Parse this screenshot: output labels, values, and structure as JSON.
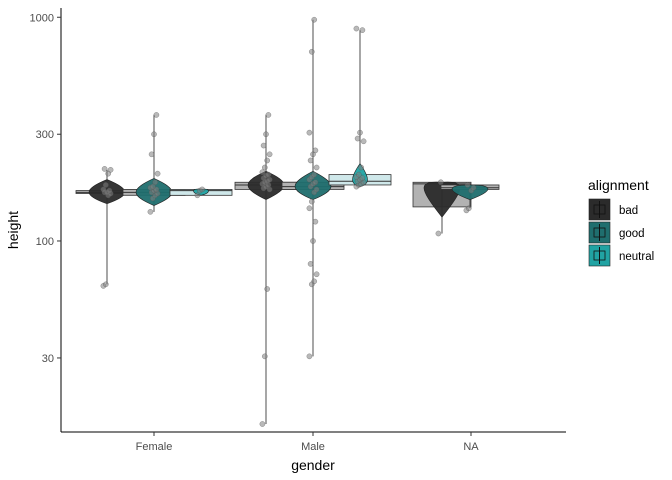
{
  "chart_data": {
    "type": "box-violin-jitter",
    "title": "",
    "xlabel": "gender",
    "ylabel": "height",
    "y_scale": "log10",
    "ylim": [
      14,
      1100
    ],
    "y_ticks": [
      30,
      100,
      300,
      1000
    ],
    "y_tick_labels": [
      "30",
      "100",
      "300",
      "1000"
    ],
    "categories": [
      "Female",
      "Male",
      "NA"
    ],
    "legend": {
      "title": "alignment",
      "placement": "right",
      "entries": [
        "bad",
        "good",
        "neutral"
      ]
    },
    "colors": {
      "bad": "#2b2b2b",
      "good": "#1f6e6e",
      "neutral": "#21a3a3",
      "box_fill": "#b2b2b2",
      "box_fill_light": "#cfe8ea",
      "point": "#7f7f7f"
    },
    "series": [
      {
        "name": "bad",
        "groups": [
          {
            "category": "Female",
            "min": 64,
            "q1": 163,
            "median": 165,
            "q3": 168,
            "max": 208,
            "points": [
              63,
              64,
              160,
              163,
              165,
              165,
              168,
              170,
              178,
              200,
              208,
              210
            ]
          },
          {
            "category": "Male",
            "min": 15.2,
            "q1": 170,
            "median": 178,
            "q3": 183,
            "max": 366,
            "points": [
              15.2,
              30.5,
              61,
              170,
              172,
              175,
              178,
              180,
              183,
              185,
              188,
              191,
              196,
              198,
              203,
              213,
              229,
              244,
              267,
              300,
              366
            ]
          },
          {
            "category": "NA",
            "min": 108,
            "q1": 142,
            "median": 180,
            "q3": 183,
            "max": 183,
            "points": [
              108,
              183
            ]
          }
        ]
      },
      {
        "name": "good",
        "groups": [
          {
            "category": "Female",
            "min": 135,
            "q1": 160,
            "median": 165,
            "q3": 170,
            "max": 366,
            "points": [
              135,
              155,
              160,
              163,
              165,
              168,
              170,
              173,
              175,
              183,
              200,
              244,
              300,
              366
            ]
          },
          {
            "category": "Male",
            "min": 30.5,
            "q1": 170,
            "median": 175,
            "q3": 183,
            "max": 975,
            "points": [
              30.5,
              64,
              66,
              71,
              79,
              100,
              122,
              140,
              150,
              165,
              170,
              175,
              180,
              183,
              188,
              193,
              198,
              213,
              229,
              244,
              254,
              305,
              701,
              975
            ]
          },
          {
            "category": "NA",
            "min": 140,
            "q1": 170,
            "median": 173,
            "q3": 178,
            "max": 178,
            "points": [
              137,
              140,
              168,
              173,
              178
            ]
          }
        ]
      },
      {
        "name": "neutral",
        "groups": [
          {
            "category": "Female",
            "min": 160,
            "q1": 160,
            "median": 168,
            "q3": 170,
            "max": 170,
            "points": [
              160,
              168,
              170
            ]
          },
          {
            "category": "Male",
            "min": 175,
            "q1": 178,
            "median": 185,
            "q3": 198,
            "max": 876,
            "points": [
              175,
              178,
              180,
              183,
              185,
              188,
              191,
              193,
              198,
              213,
              279,
              287,
              305,
              876,
              890
            ]
          }
        ]
      }
    ]
  }
}
